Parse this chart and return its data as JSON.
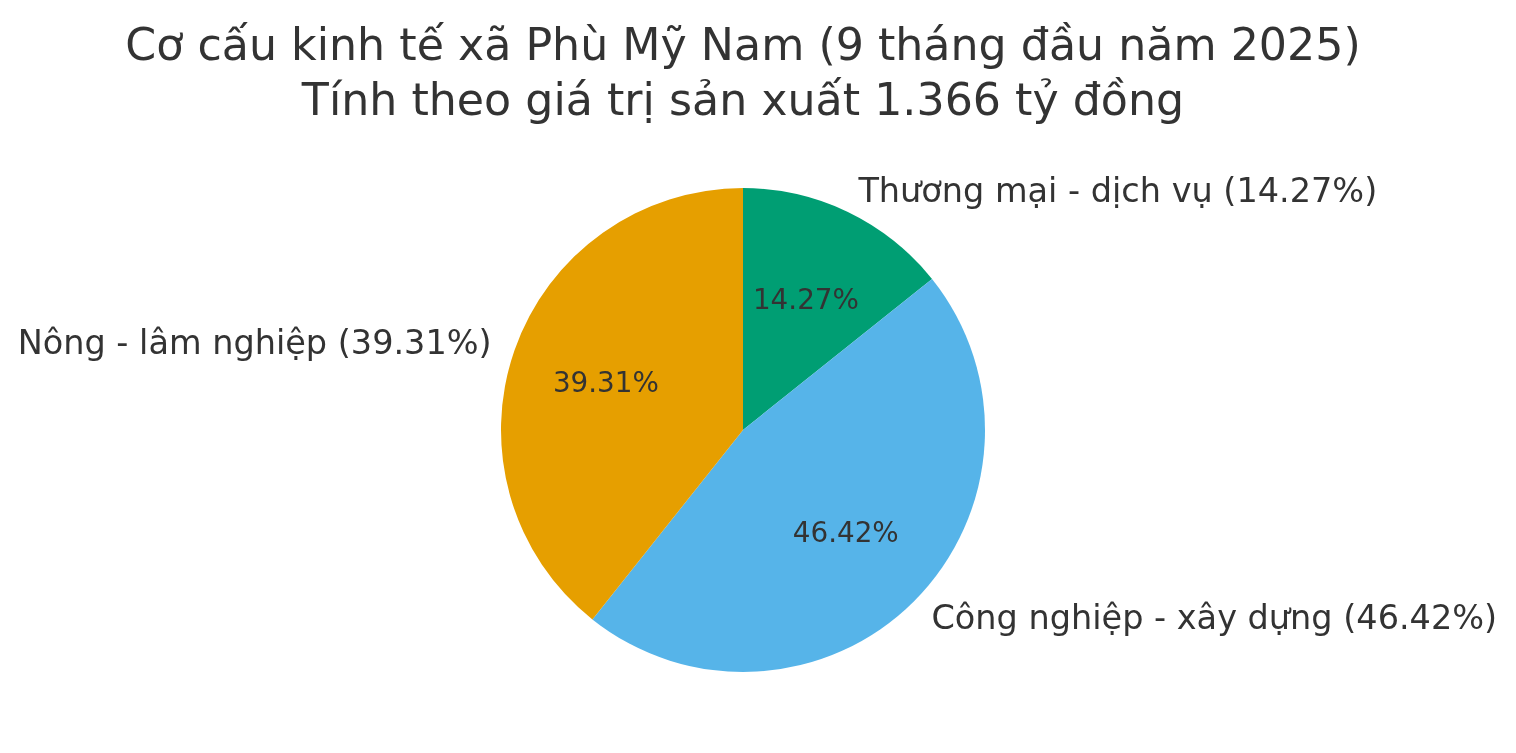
{
  "chart_data": {
    "type": "pie",
    "title": "Cơ cấu kinh tế xã Phù Mỹ Nam (9 tháng đầu năm 2025)",
    "subtitle": "Tính theo giá trị sản xuất 1.366 tỷ đồng",
    "categories": [
      "Thương mại - dịch vụ (14.27%)",
      "Công nghiệp - xây dựng (46.42%)",
      "Nông - lâm nghiệp (39.31%)"
    ],
    "values": [
      14.27,
      46.42,
      39.31
    ],
    "colors": [
      "#009e73",
      "#56b4e9",
      "#e69f00"
    ],
    "value_labels": [
      "14.27%",
      "46.42%",
      "39.31%"
    ]
  }
}
